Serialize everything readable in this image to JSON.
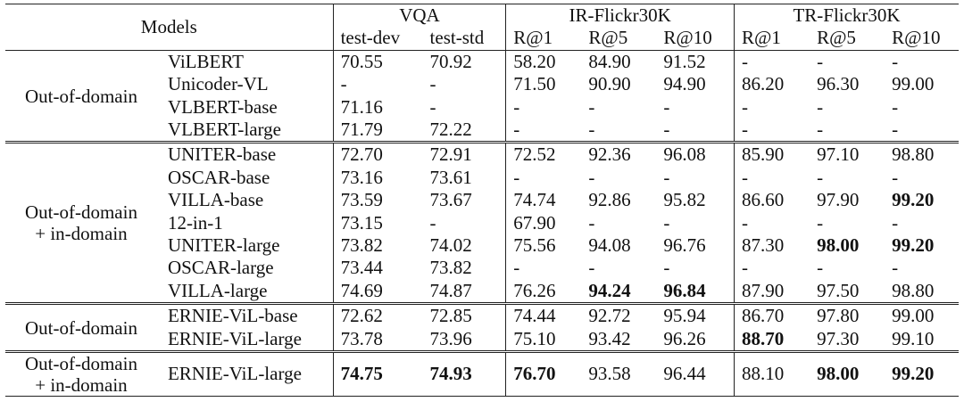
{
  "header": {
    "models": "Models",
    "vqa": "VQA",
    "ir": "IR-Flickr30K",
    "tr": "TR-Flickr30K",
    "subcols": [
      "test-dev",
      "test-std",
      "R@1",
      "R@5",
      "R@10",
      "R@1",
      "R@5",
      "R@10"
    ]
  },
  "groups": [
    {
      "label_lines": [
        "Out-of-domain"
      ],
      "rows": [
        {
          "model": "ViLBERT",
          "values": [
            "70.55",
            "70.92",
            "58.20",
            "84.90",
            "91.52",
            "-",
            "-",
            "-"
          ],
          "bold": []
        },
        {
          "model": "Unicoder-VL",
          "values": [
            "-",
            "-",
            "71.50",
            "90.90",
            "94.90",
            "86.20",
            "96.30",
            "99.00"
          ],
          "bold": []
        },
        {
          "model": "VLBERT-base",
          "values": [
            "71.16",
            "-",
            "-",
            "-",
            "-",
            "-",
            "-",
            "-"
          ],
          "bold": []
        },
        {
          "model": "VLBERT-large",
          "values": [
            "71.79",
            "72.22",
            "-",
            "-",
            "-",
            "-",
            "-",
            "-"
          ],
          "bold": []
        }
      ]
    },
    {
      "label_lines": [
        "Out-of-domain",
        "+ in-domain"
      ],
      "rows": [
        {
          "model": "UNITER-base",
          "values": [
            "72.70",
            "72.91",
            "72.52",
            "92.36",
            "96.08",
            "85.90",
            "97.10",
            "98.80"
          ],
          "bold": []
        },
        {
          "model": "OSCAR-base",
          "values": [
            "73.16",
            "73.61",
            "-",
            "-",
            "-",
            "-",
            "-",
            "-"
          ],
          "bold": []
        },
        {
          "model": "VILLA-base",
          "values": [
            "73.59",
            "73.67",
            "74.74",
            "92.86",
            "95.82",
            "86.60",
            "97.90",
            "99.20"
          ],
          "bold": [
            7
          ]
        },
        {
          "model": "12-in-1",
          "values": [
            "73.15",
            "-",
            "67.90",
            "-",
            "-",
            "-",
            "-",
            "-"
          ],
          "bold": []
        },
        {
          "model": "UNITER-large",
          "values": [
            "73.82",
            "74.02",
            "75.56",
            "94.08",
            "96.76",
            "87.30",
            "98.00",
            "99.20"
          ],
          "bold": [
            6,
            7
          ]
        },
        {
          "model": "OSCAR-large",
          "values": [
            "73.44",
            "73.82",
            "-",
            "-",
            "-",
            "-",
            "-",
            "-"
          ],
          "bold": []
        },
        {
          "model": "VILLA-large",
          "values": [
            "74.69",
            "74.87",
            "76.26",
            "94.24",
            "96.84",
            "87.90",
            "97.50",
            "98.80"
          ],
          "bold": [
            3,
            4
          ]
        }
      ]
    },
    {
      "label_lines": [
        "Out-of-domain"
      ],
      "rows": [
        {
          "model": "ERNIE-ViL-base",
          "values": [
            "72.62",
            "72.85",
            "74.44",
            "92.72",
            "95.94",
            "86.70",
            "97.80",
            "99.00"
          ],
          "bold": []
        },
        {
          "model": "ERNIE-ViL-large",
          "values": [
            "73.78",
            "73.96",
            "75.10",
            "93.42",
            "96.26",
            "88.70",
            "97.30",
            "99.10"
          ],
          "bold": [
            5
          ]
        }
      ]
    },
    {
      "label_lines": [
        "Out-of-domain",
        "+ in-domain"
      ],
      "rows": [
        {
          "model": "ERNIE-ViL-large",
          "values": [
            "74.75",
            "74.93",
            "76.70",
            "93.58",
            "96.44",
            "88.10",
            "98.00",
            "99.20"
          ],
          "bold": [
            0,
            1,
            2,
            6,
            7
          ]
        }
      ]
    }
  ]
}
